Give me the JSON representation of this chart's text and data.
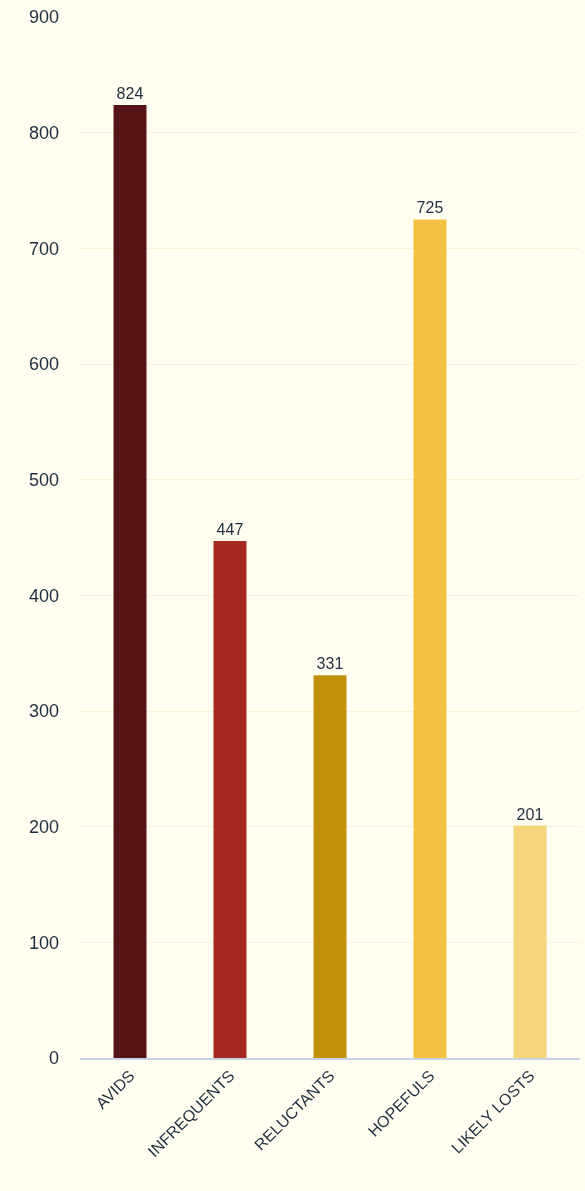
{
  "chart_data": {
    "type": "bar",
    "categories": [
      "AVIDS",
      "INFREQUENTS",
      "RELUCTANTS",
      "HOPEFULS",
      "LIKELY LOSTS"
    ],
    "values": [
      824,
      447,
      331,
      725,
      201
    ],
    "colors": [
      "#561414",
      "#a62823",
      "#c3900c",
      "#f3c242",
      "#f7d57d"
    ],
    "ylim": [
      0,
      900
    ],
    "yticks": [
      0,
      100,
      200,
      300,
      400,
      500,
      600,
      700,
      800,
      900
    ],
    "grid": "y",
    "data_labels": true
  }
}
